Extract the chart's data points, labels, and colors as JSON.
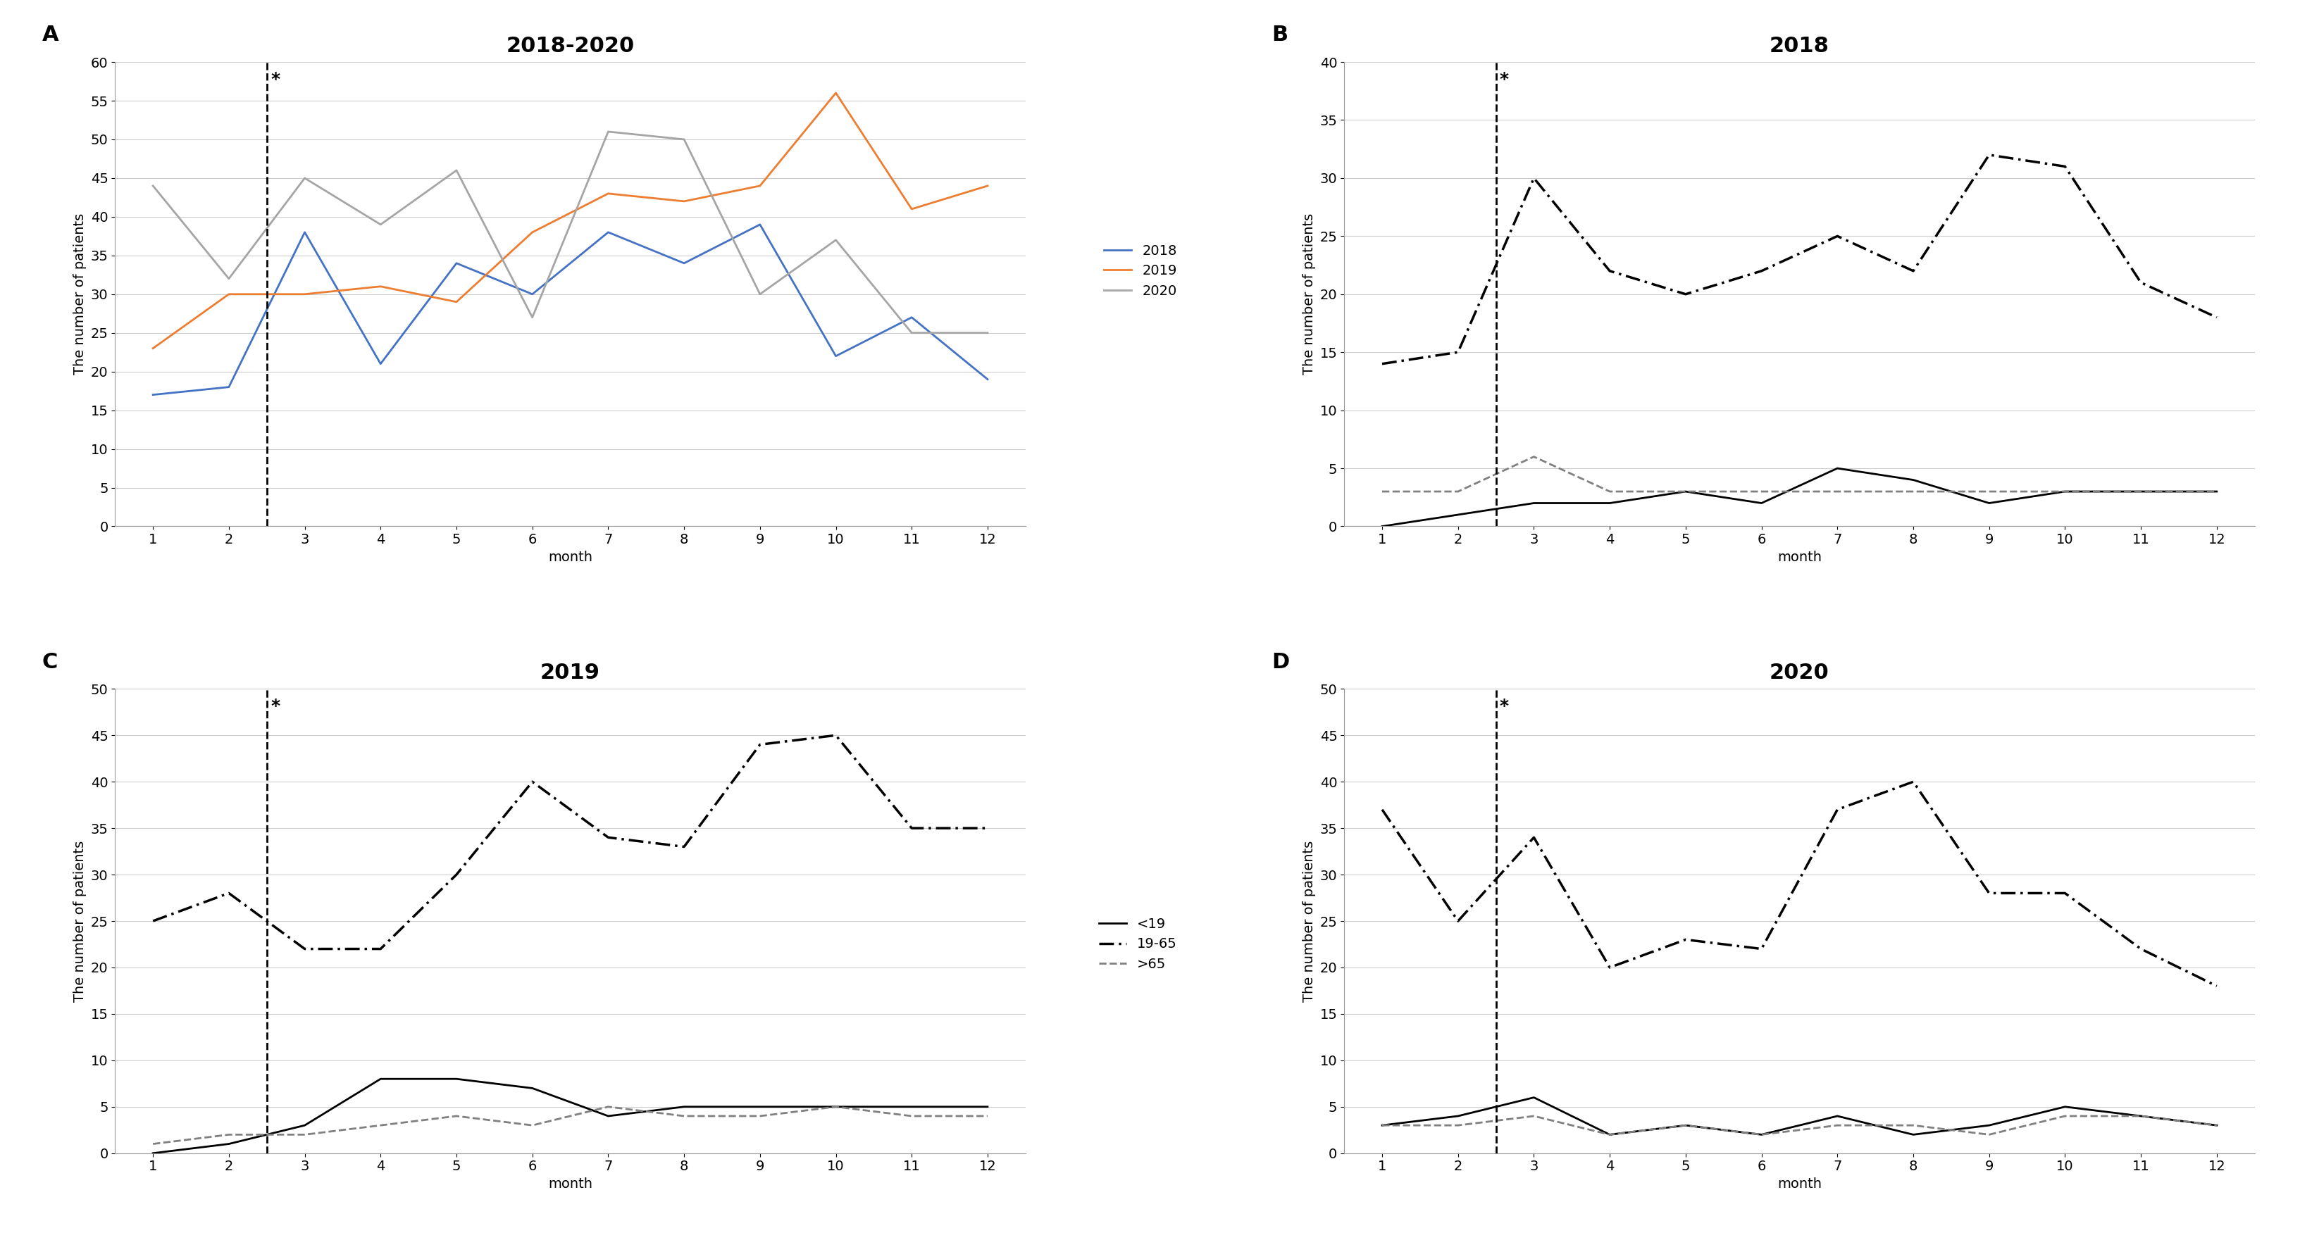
{
  "panel_A": {
    "title": "2018-2020",
    "label": "A",
    "ylim": [
      0,
      60
    ],
    "yticks": [
      0,
      5,
      10,
      15,
      20,
      25,
      30,
      35,
      40,
      45,
      50,
      55,
      60
    ],
    "series": {
      "2018": [
        17,
        18,
        38,
        21,
        34,
        30,
        38,
        34,
        39,
        22,
        27,
        19
      ],
      "2019": [
        23,
        30,
        30,
        31,
        29,
        38,
        43,
        42,
        44,
        56,
        41,
        44
      ],
      "2020": [
        44,
        32,
        45,
        39,
        46,
        27,
        51,
        50,
        30,
        37,
        25,
        25
      ]
    },
    "colors": {
      "2018": "#4472C4",
      "2019": "#ED7D31",
      "2020": "#A5A5A5"
    },
    "legend_labels": [
      "2018",
      "2019",
      "2020"
    ]
  },
  "panel_B": {
    "title": "2018",
    "label": "B",
    "ylim": [
      0,
      40
    ],
    "yticks": [
      0,
      5,
      10,
      15,
      20,
      25,
      30,
      35,
      40
    ],
    "series": {
      "<19": [
        0,
        1,
        2,
        2,
        3,
        2,
        5,
        4,
        2,
        3,
        3,
        3
      ],
      "19-65": [
        14,
        15,
        30,
        22,
        20,
        22,
        25,
        22,
        32,
        31,
        21,
        18
      ],
      ">65": [
        3,
        3,
        6,
        3,
        3,
        3,
        3,
        3,
        3,
        3,
        3,
        3
      ]
    },
    "line_styles": {
      "<19": "-",
      "19-65": "-.",
      ">65": "--"
    },
    "colors": {
      "<19": "#000000",
      "19-65": "#000000",
      ">65": "#808080"
    },
    "legend_labels": [
      "<19",
      "19-65",
      ">65"
    ]
  },
  "panel_C": {
    "title": "2019",
    "label": "C",
    "ylim": [
      0,
      50
    ],
    "yticks": [
      0,
      5,
      10,
      15,
      20,
      25,
      30,
      35,
      40,
      45,
      50
    ],
    "series": {
      "<19": [
        0,
        1,
        3,
        8,
        8,
        7,
        4,
        5,
        5,
        5,
        5,
        5
      ],
      "19-65": [
        25,
        28,
        22,
        22,
        30,
        40,
        34,
        33,
        44,
        45,
        35,
        35
      ],
      ">65": [
        1,
        2,
        2,
        3,
        4,
        3,
        5,
        4,
        4,
        5,
        4,
        4
      ]
    },
    "line_styles": {
      "<19": "-",
      "19-65": "-.",
      ">65": "--"
    },
    "colors": {
      "<19": "#000000",
      "19-65": "#000000",
      ">65": "#808080"
    },
    "legend_labels": [
      "<19",
      "19-65",
      ">65"
    ]
  },
  "panel_D": {
    "title": "2020",
    "label": "D",
    "ylim": [
      0,
      50
    ],
    "yticks": [
      0,
      5,
      10,
      15,
      20,
      25,
      30,
      35,
      40,
      45,
      50
    ],
    "series": {
      "<19": [
        3,
        4,
        6,
        2,
        3,
        2,
        4,
        2,
        3,
        5,
        4,
        3
      ],
      "19-65": [
        37,
        25,
        34,
        20,
        23,
        22,
        37,
        40,
        28,
        28,
        22,
        18
      ],
      ">65": [
        3,
        3,
        4,
        2,
        3,
        2,
        3,
        3,
        2,
        4,
        4,
        3
      ]
    },
    "line_styles": {
      "<19": "-",
      "19-65": "-.",
      ">65": "--"
    },
    "colors": {
      "<19": "#000000",
      "19-65": "#000000",
      ">65": "#808080"
    },
    "legend_labels": [
      "<19",
      "19-65",
      ">65"
    ]
  },
  "months": [
    1,
    2,
    3,
    4,
    5,
    6,
    7,
    8,
    9,
    10,
    11,
    12
  ],
  "vline_x": 2.5,
  "ylabel": "The number of patients",
  "xlabel": "month",
  "background_color": "#FFFFFF",
  "grid_color": "#CCCCCC"
}
